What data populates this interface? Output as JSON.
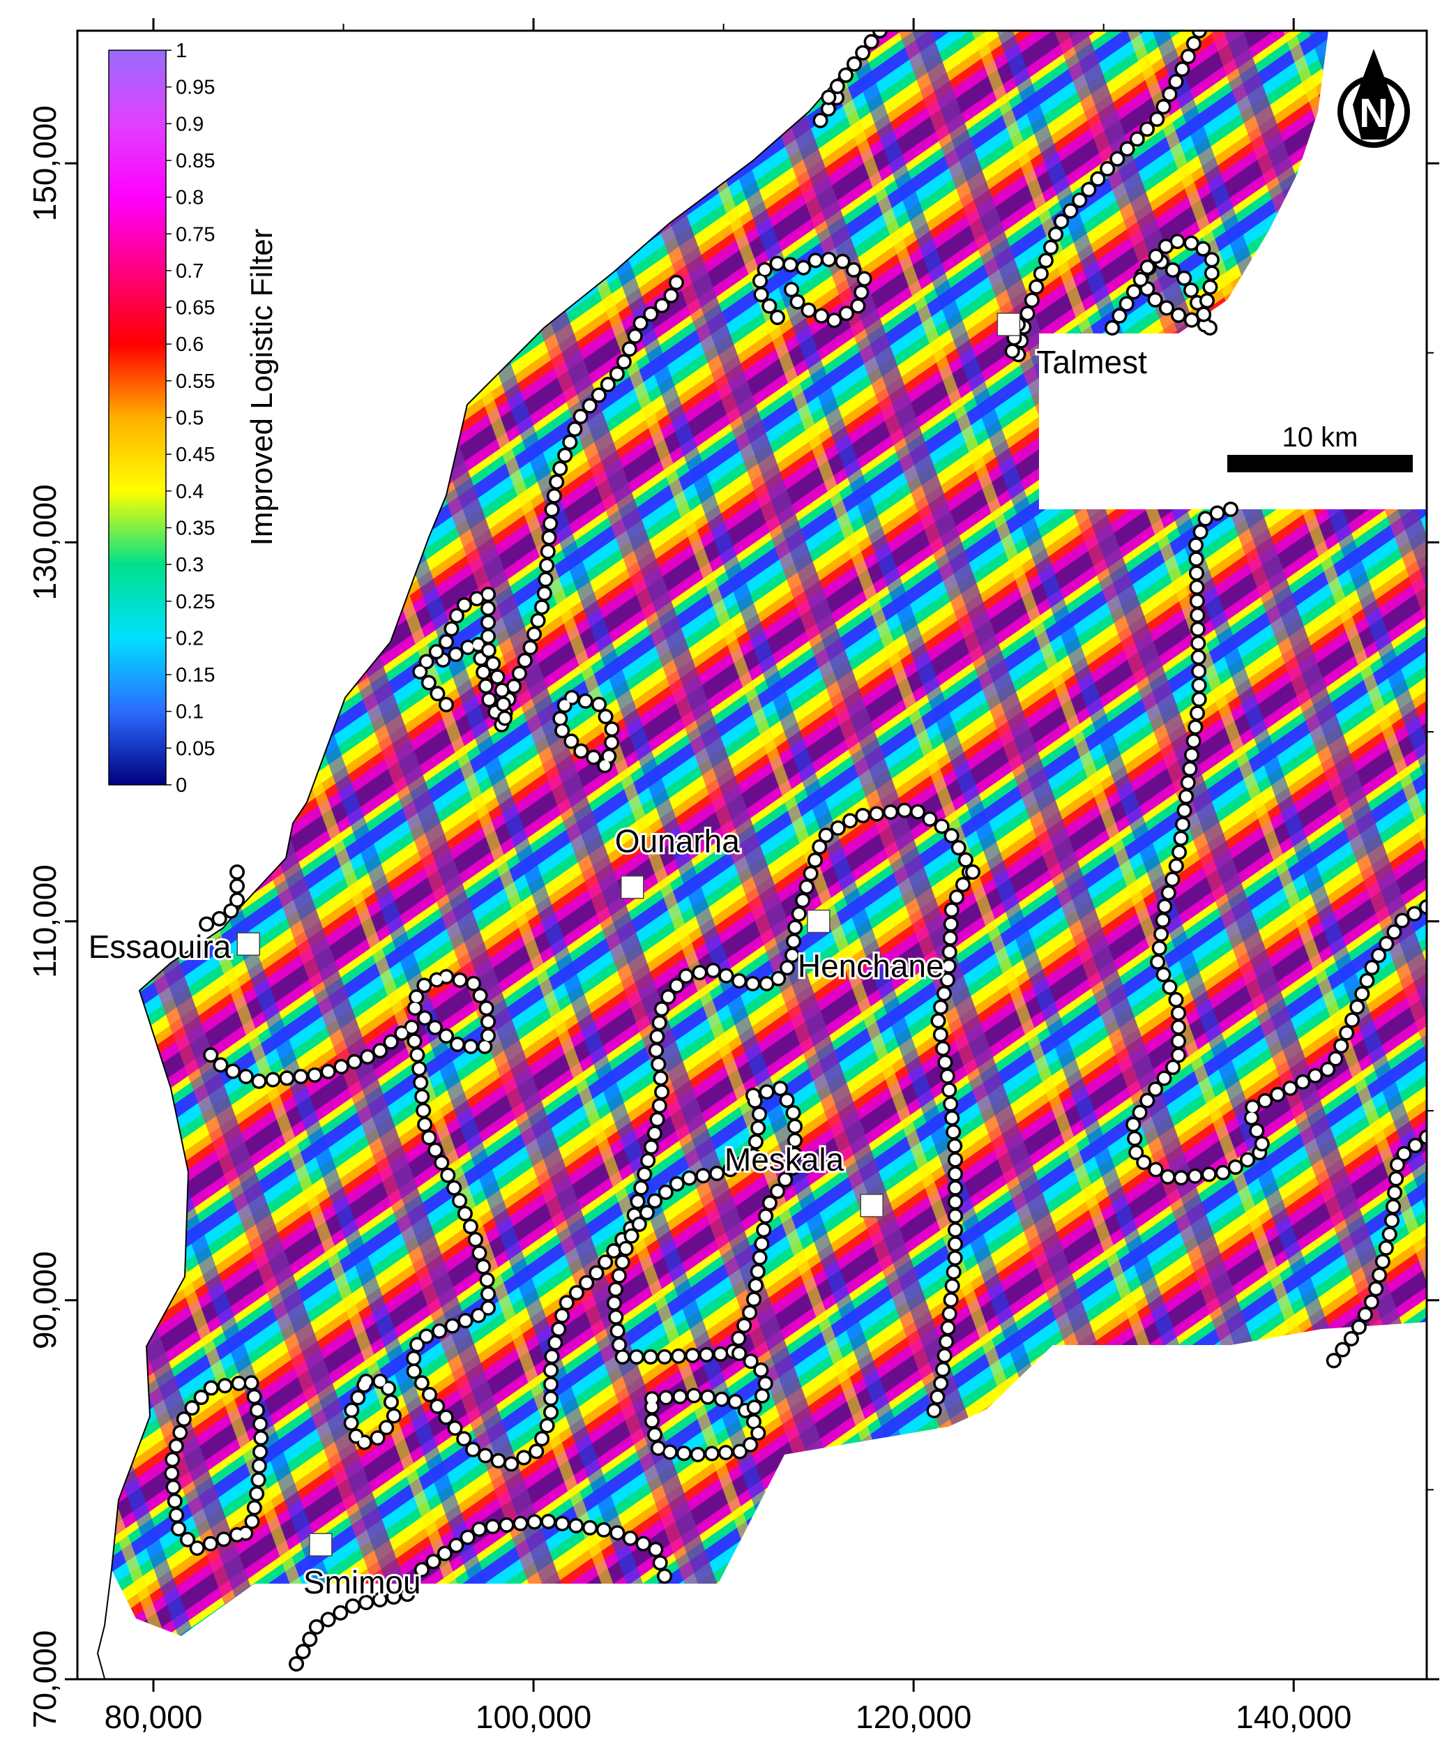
{
  "map": {
    "x_ticks": [
      "80,000",
      "100,000",
      "120,000",
      "140,000"
    ],
    "y_ticks": [
      "70,000",
      "90,000",
      "110,000",
      "130,000",
      "150,000"
    ],
    "x_range": [
      76000,
      147000
    ],
    "y_range": [
      70000,
      157000
    ]
  },
  "colorbar": {
    "title": "Improved Logistic Filter",
    "labels": [
      "1",
      "0.95",
      "0.9",
      "0.85",
      "0.8",
      "0.75",
      "0.7",
      "0.65",
      "0.6",
      "0.55",
      "0.5",
      "0.45",
      "0.4",
      "0.35",
      "0.3",
      "0.25",
      "0.2",
      "0.15",
      "0.1",
      "0.05",
      "0"
    ],
    "stops": [
      "#000080",
      "#2b6cff",
      "#00e0ff",
      "#00e08a",
      "#ffff00",
      "#ffb000",
      "#ff0000",
      "#ff0080",
      "#ff00ff",
      "#e040ff",
      "#9a6cff"
    ]
  },
  "towns": [
    {
      "name": "Talmest",
      "x": 125000,
      "y": 141500
    },
    {
      "name": "Ounarha",
      "x": 105200,
      "y": 111800
    },
    {
      "name": "Henchane",
      "x": 115000,
      "y": 110000
    },
    {
      "name": "Essaouira",
      "x": 85000,
      "y": 108800
    },
    {
      "name": "Meskala",
      "x": 117800,
      "y": 95000
    },
    {
      "name": "Smimou",
      "x": 88800,
      "y": 77100
    }
  ],
  "scale_bar": {
    "label": "10 km"
  },
  "north_arrow": {
    "label": "N"
  },
  "colors": {
    "lineament_fill": "#ffffff",
    "lineament_stroke": "#000000"
  }
}
